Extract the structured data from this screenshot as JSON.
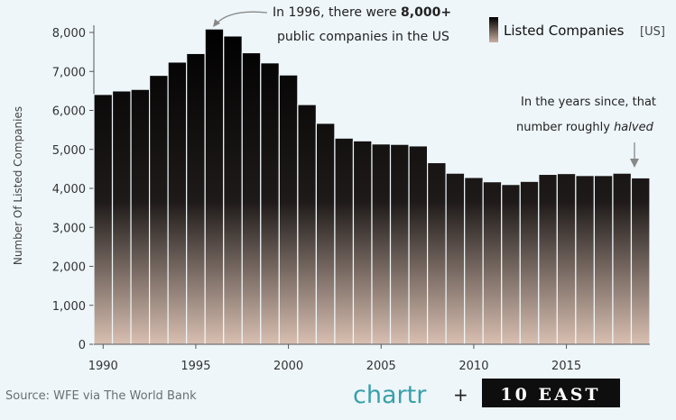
{
  "chart_data": {
    "type": "bar",
    "title": "",
    "legend": {
      "label": "Listed Companies",
      "unit": "[US]",
      "placement": "top-right"
    },
    "xlabel": "",
    "ylabel": "Number Of Listed Companies",
    "ylim": [
      0,
      8000
    ],
    "yticks": [
      0,
      1000,
      2000,
      3000,
      4000,
      5000,
      6000,
      7000,
      8000
    ],
    "ytick_labels": [
      "0",
      "1,000",
      "2,000",
      "3,000",
      "4,000",
      "5,000",
      "6,000",
      "7,000",
      "8,000"
    ],
    "xtick_labels": [
      "1990",
      "1995",
      "2000",
      "2005",
      "2010",
      "2015"
    ],
    "categories": [
      1990,
      1991,
      1992,
      1993,
      1994,
      1995,
      1996,
      1997,
      1998,
      1999,
      2000,
      2001,
      2002,
      2003,
      2004,
      2005,
      2006,
      2007,
      2008,
      2009,
      2010,
      2011,
      2012,
      2013,
      2014,
      2015,
      2016,
      2017,
      2018,
      2019
    ],
    "values": [
      6410,
      6500,
      6540,
      6900,
      7240,
      7460,
      8090,
      7910,
      7480,
      7220,
      6910,
      6150,
      5670,
      5290,
      5220,
      5140,
      5130,
      5090,
      4660,
      4390,
      4280,
      4170,
      4100,
      4180,
      4360,
      4380,
      4330,
      4330,
      4390,
      4270
    ],
    "grid": false
  },
  "annotations": {
    "peak_line1_prefix": "In 1996, there were ",
    "peak_line1_bold": "8,000+",
    "peak_line2": "public companies in the US",
    "halved_line1": "In the years since, that",
    "halved_line2_prefix": "number roughly ",
    "halved_line2_em": "halved"
  },
  "footer": {
    "source": "Source: WFE via The World Bank",
    "brand_chartr": "chartr",
    "brand_plus": "+",
    "brand_east": "10 EAST"
  },
  "colors": {
    "bar_top": "#000000",
    "bar_bottom": "#d8bfb1",
    "bar_stroke": "#eef6fa",
    "background": "#eef6fa",
    "chartr": "#3aa0aa"
  }
}
